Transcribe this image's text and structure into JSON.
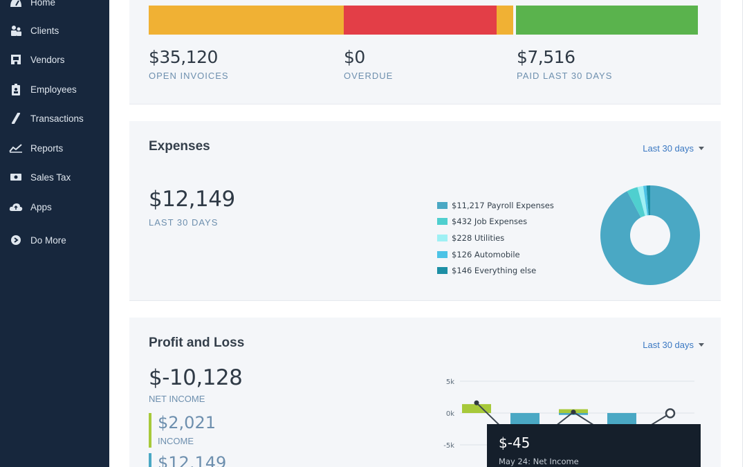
{
  "sidebar": {
    "items": [
      {
        "label": "Home",
        "icon": "home-icon"
      },
      {
        "label": "Clients",
        "icon": "clients-icon"
      },
      {
        "label": "Vendors",
        "icon": "vendors-icon"
      },
      {
        "label": "Employees",
        "icon": "employees-icon"
      },
      {
        "label": "Transactions",
        "icon": "transactions-icon"
      },
      {
        "label": "Reports",
        "icon": "reports-icon"
      },
      {
        "label": "Sales Tax",
        "icon": "sales-tax-icon"
      },
      {
        "label": "Apps",
        "icon": "apps-icon"
      },
      {
        "label": "Do More",
        "icon": "do-more-icon"
      }
    ]
  },
  "invoices": {
    "segments": [
      {
        "name": "open",
        "color": "#f0b134"
      },
      {
        "name": "overdue",
        "color": "#e33e47"
      },
      {
        "name": "paid",
        "color": "#5ab34d"
      }
    ],
    "open_value": "$35,120",
    "open_label": "OPEN INVOICES",
    "overdue_value": "$0",
    "overdue_label": "OVERDUE",
    "paid_value": "$7,516",
    "paid_label": "PAID LAST 30 DAYS"
  },
  "expenses": {
    "title": "Expenses",
    "range": "Last 30 days",
    "total": "$12,149",
    "total_label": "LAST 30 DAYS",
    "legend": [
      {
        "text": "$11,217 Payroll Expenses",
        "color": "#4aa8c4"
      },
      {
        "text": "$432 Job Expenses",
        "color": "#4fcfcf"
      },
      {
        "text": "$228 Utilities",
        "color": "#9ef0f4"
      },
      {
        "text": "$126 Automobile",
        "color": "#4cc3e6"
      },
      {
        "text": "$146 Everything else",
        "color": "#1d8fa5"
      }
    ]
  },
  "profit_loss": {
    "title": "Profit and Loss",
    "range": "Last 30 days",
    "net": "$-10,128",
    "net_label": "NET INCOME",
    "income": "$2,021",
    "income_label": "INCOME",
    "income_color": "#a7c93a",
    "expenses": "$12,149",
    "expense_color": "#4aa8c4",
    "tooltip_value": "$-45",
    "tooltip_label": "May 24: Net Income"
  },
  "chart_data": {
    "type": "bar",
    "y_ticks": [
      "5k",
      "0k",
      "-5k"
    ],
    "ylim": [
      -5500,
      5500
    ],
    "bars": [
      {
        "income": 1400,
        "expense": 0
      },
      {
        "income": 0,
        "expense": 6000
      },
      {
        "income": 600,
        "expense": 300
      },
      {
        "income": 0,
        "expense": 4800
      },
      {
        "income": 0,
        "expense": 0
      }
    ],
    "net_line": [
      1600,
      -5800,
      150,
      -4700,
      -45
    ]
  }
}
